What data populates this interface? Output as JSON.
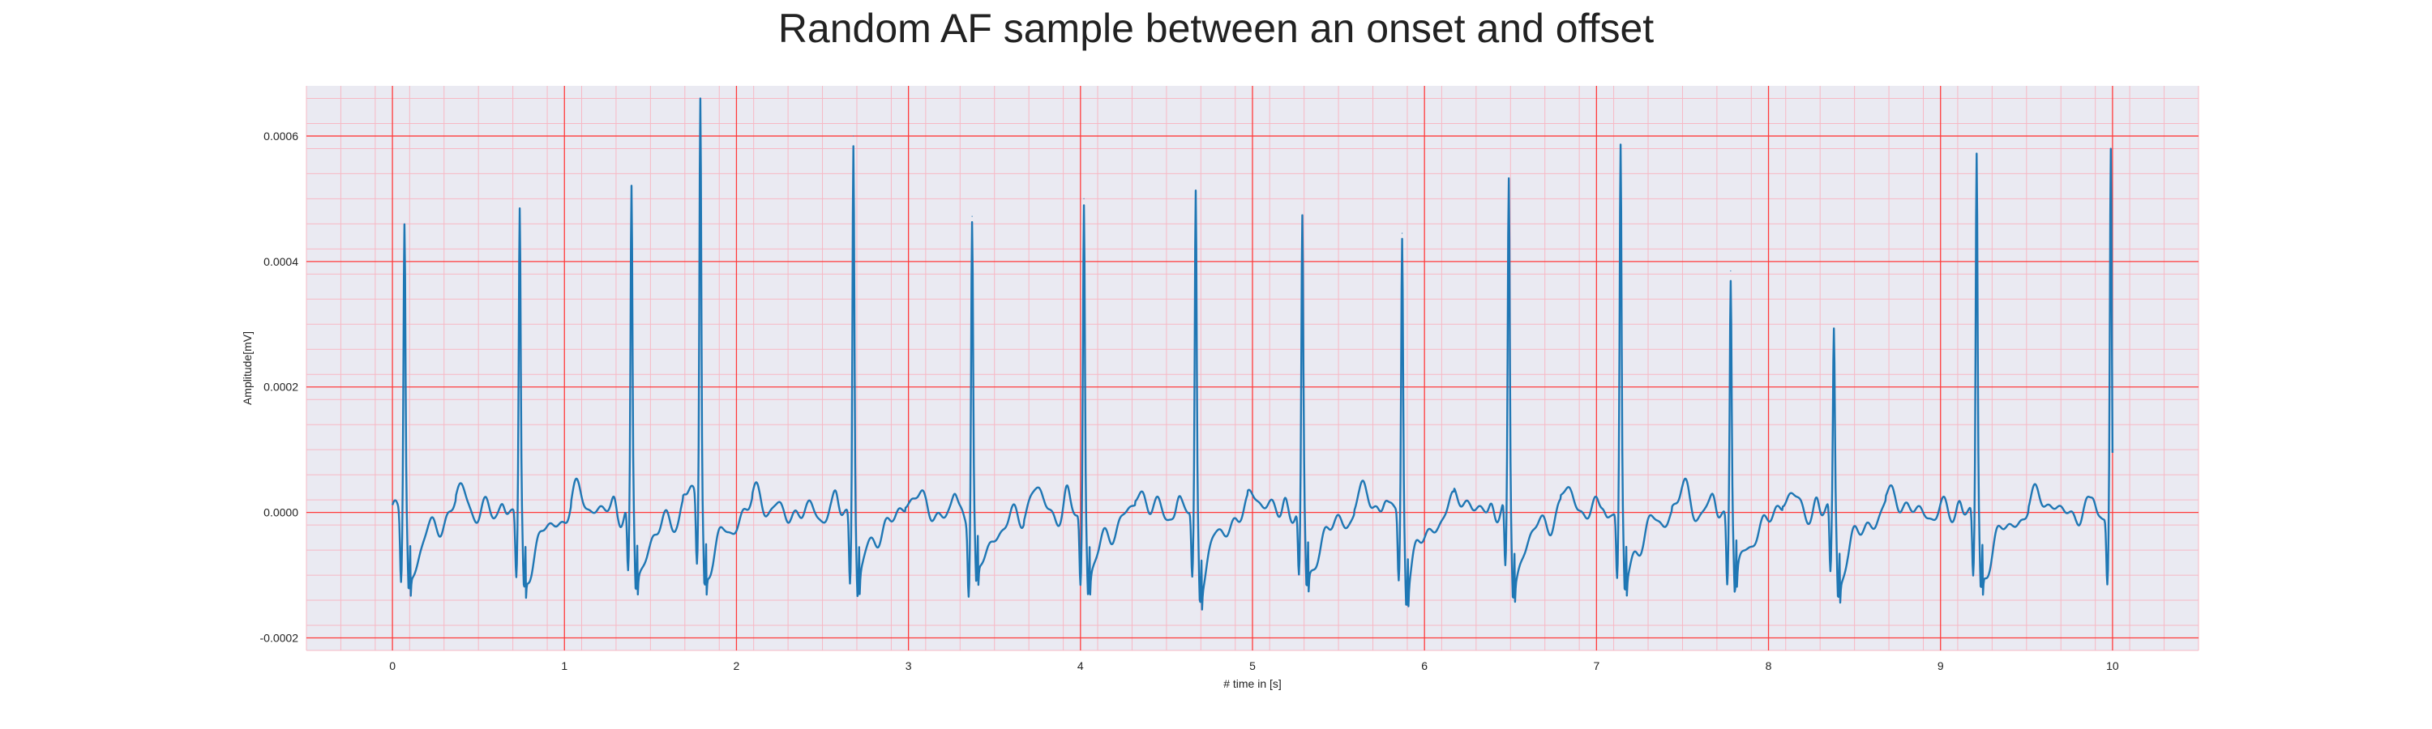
{
  "chart_data": {
    "type": "line",
    "title": "Random AF sample between an onset and offset",
    "xlabel": "# time in [s]",
    "ylabel": "Amplitude[mV]",
    "xlim": [
      -0.5,
      10.5
    ],
    "ylim": [
      -0.00022,
      0.00068
    ],
    "xticks": [
      0,
      1,
      2,
      3,
      4,
      5,
      6,
      7,
      8,
      9,
      10
    ],
    "xtick_labels": [
      "0",
      "1",
      "2",
      "3",
      "4",
      "5",
      "6",
      "7",
      "8",
      "9",
      "10"
    ],
    "yticks": [
      -0.0002,
      0.0,
      0.0002,
      0.0004,
      0.0006
    ],
    "ytick_labels": [
      "-0.0002",
      "0.0000",
      "0.0002",
      "0.0004",
      "0.0006"
    ],
    "grid": "major and minor, red",
    "colors": {
      "background": "#eaeaf2",
      "major_grid": "#ff3b3b",
      "minor_grid": "#f7b8c4",
      "line": "#1f77b4"
    },
    "series": [
      {
        "color": "#1f77b4",
        "qrs_beats": [
          {
            "t": 0.07,
            "r_peak": 0.00046
          },
          {
            "t": 0.74,
            "r_peak": 0.000472
          },
          {
            "t": 1.39,
            "r_peak": 0.000505
          },
          {
            "t": 1.79,
            "r_peak": 0.00064
          },
          {
            "t": 2.68,
            "r_peak": 0.0006
          },
          {
            "t": 3.37,
            "r_peak": 0.000472
          },
          {
            "t": 4.02,
            "r_peak": 0.0005
          },
          {
            "t": 4.67,
            "r_peak": 0.000505
          },
          {
            "t": 5.29,
            "r_peak": 0.000458
          },
          {
            "t": 5.87,
            "r_peak": 0.000445
          },
          {
            "t": 6.49,
            "r_peak": 0.00052
          },
          {
            "t": 7.14,
            "r_peak": 0.000575
          },
          {
            "t": 7.78,
            "r_peak": 0.000385
          },
          {
            "t": 8.38,
            "r_peak": 0.00029
          },
          {
            "t": 9.21,
            "r_peak": 0.000565
          },
          {
            "t": 9.99,
            "r_peak": 0.000575
          }
        ],
        "baseline": 0.0,
        "trough_min": -0.000188,
        "x_start": 0.0,
        "x_end": 10.0
      }
    ]
  }
}
